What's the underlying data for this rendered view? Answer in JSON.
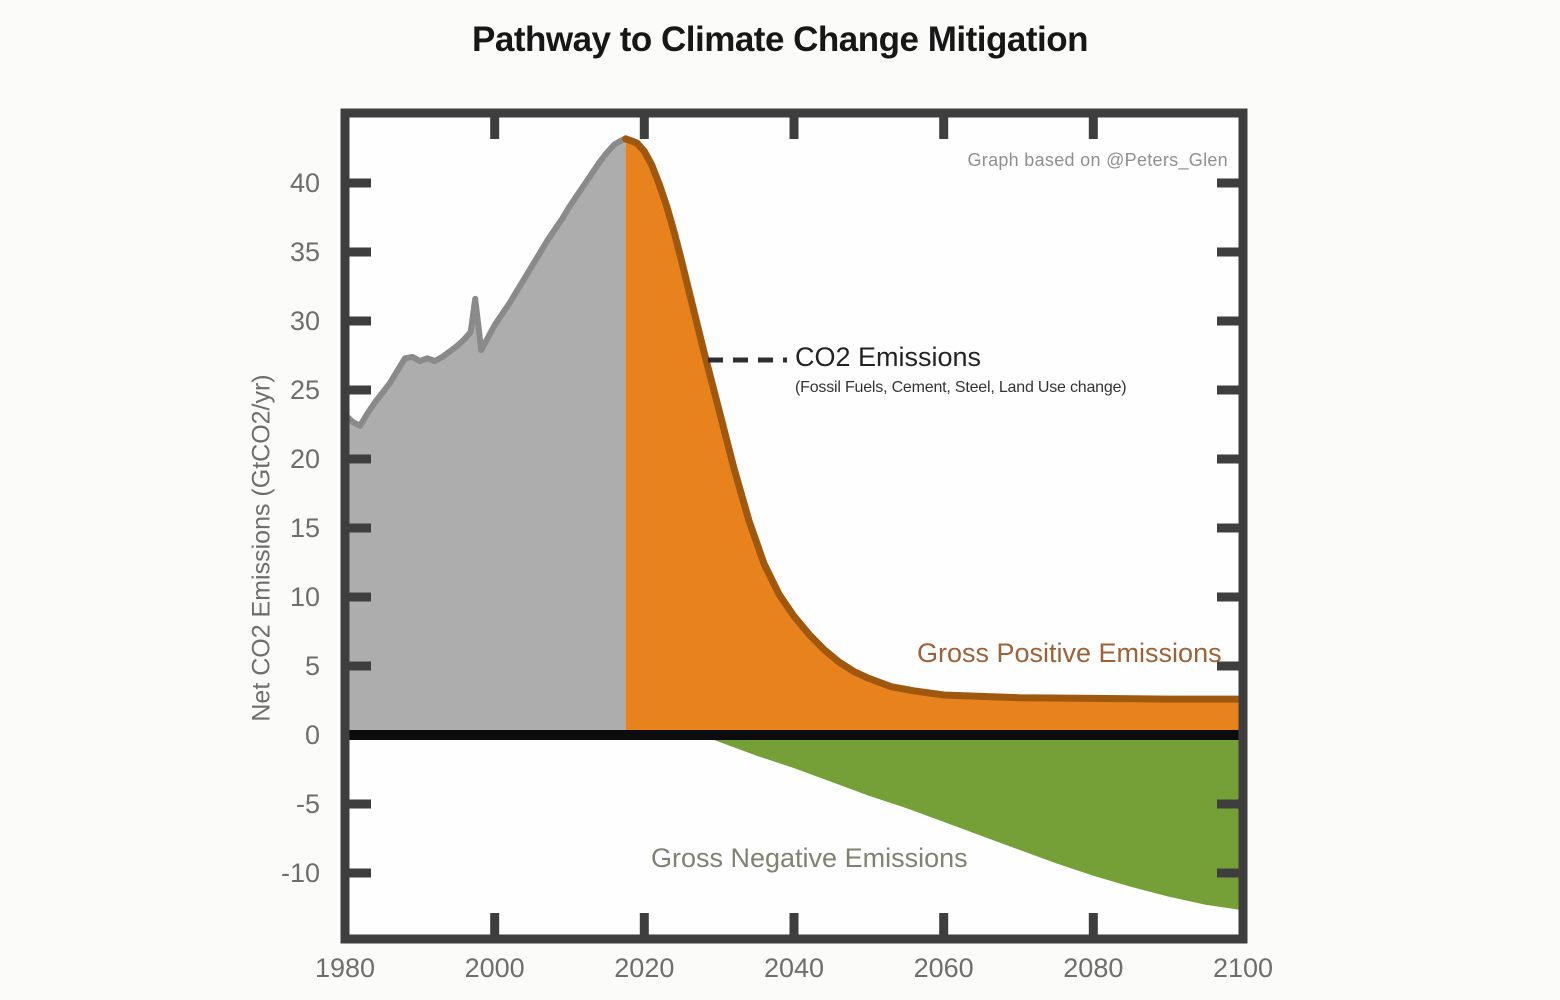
{
  "chart_data": {
    "type": "area",
    "title": "Pathway to Climate Change Mitigation",
    "attribution": "Graph based on @Peters_Glen",
    "xlabel": "",
    "ylabel": "Net CO2 Emissions (GtCO2/yr)",
    "xlim": [
      1980,
      2100
    ],
    "ylim": [
      -14.5,
      44.8
    ],
    "grid": false,
    "legend_position": "none",
    "zero_line": true,
    "x_ticks": [
      1980,
      2000,
      2020,
      2040,
      2060,
      2080,
      2100
    ],
    "y_ticks": [
      40,
      35,
      30,
      25,
      20,
      15,
      10,
      5,
      0,
      -5,
      -10
    ],
    "annotations": {
      "co2_label": "CO2 Emissions",
      "co2_sublabel": "(Fossil Fuels, Cement, Steel, Land Use change)",
      "positive_label": "Gross Positive Emissions",
      "negative_label": "Gross Negative Emissions"
    },
    "series": [
      {
        "name": "Historical CO2 emissions",
        "color": "#adadad",
        "line_color": "#8a8a8a",
        "x": [
          1980,
          1981,
          1982,
          1983,
          1984,
          1985,
          1986,
          1987,
          1988,
          1989,
          1990,
          1991,
          1992,
          1993,
          1994,
          1995,
          1996,
          1996.8,
          1997.4,
          1998.2,
          1999,
          2000,
          2001,
          2002,
          2003,
          2004,
          2005,
          2006,
          2007,
          2008,
          2009,
          2010,
          2011,
          2012,
          2013,
          2014,
          2015,
          2016,
          2017,
          2017.5
        ],
        "values": [
          23.2,
          22.7,
          22.4,
          23.3,
          24.1,
          24.8,
          25.5,
          26.4,
          27.3,
          27.4,
          27.1,
          27.3,
          27.1,
          27.4,
          27.8,
          28.2,
          28.7,
          29.2,
          31.6,
          27.9,
          28.7,
          29.7,
          30.5,
          31.3,
          32.2,
          33.1,
          34.0,
          34.9,
          35.8,
          36.6,
          37.4,
          38.3,
          39.1,
          39.9,
          40.7,
          41.5,
          42.2,
          42.8,
          43.1,
          43.2
        ]
      },
      {
        "name": "Gross positive emissions (projection)",
        "color": "#e8821d",
        "line_color": "#a0570e",
        "x": [
          2017.5,
          2019,
          2020,
          2021,
          2022,
          2023,
          2024,
          2025,
          2026,
          2027,
          2028,
          2029,
          2030,
          2032,
          2034,
          2036,
          2038,
          2040,
          2042,
          2044,
          2046,
          2048,
          2050,
          2053,
          2056,
          2060,
          2065,
          2070,
          2080,
          2090,
          2100
        ],
        "values": [
          43.2,
          42.9,
          42.3,
          41.3,
          39.9,
          38.3,
          36.4,
          34.3,
          32.1,
          29.9,
          27.7,
          25.6,
          23.5,
          19.3,
          15.5,
          12.4,
          10.2,
          8.6,
          7.3,
          6.2,
          5.3,
          4.6,
          4.1,
          3.5,
          3.2,
          2.9,
          2.8,
          2.7,
          2.65,
          2.6,
          2.6
        ]
      },
      {
        "name": "Gross negative emissions (projection)",
        "color": "#75a038",
        "line_color": null,
        "x": [
          2027.5,
          2030,
          2035,
          2040,
          2045,
          2050,
          2055,
          2060,
          2065,
          2070,
          2075,
          2080,
          2085,
          2090,
          2095,
          2100
        ],
        "values": [
          0,
          -0.5,
          -1.5,
          -2.4,
          -3.4,
          -4.4,
          -5.3,
          -6.3,
          -7.3,
          -8.3,
          -9.3,
          -10.2,
          -11.0,
          -11.7,
          -12.3,
          -12.7
        ]
      }
    ],
    "colors": {
      "plot_bg": "#fefefe",
      "frame": "#3e3e3e",
      "zero_line": "#0c0c0c",
      "tick_label": "#6e6e6e",
      "annotation_line": "#2d2d2d",
      "positive_label_color": "#9c6238",
      "negative_label_color": "#7e8272"
    }
  }
}
